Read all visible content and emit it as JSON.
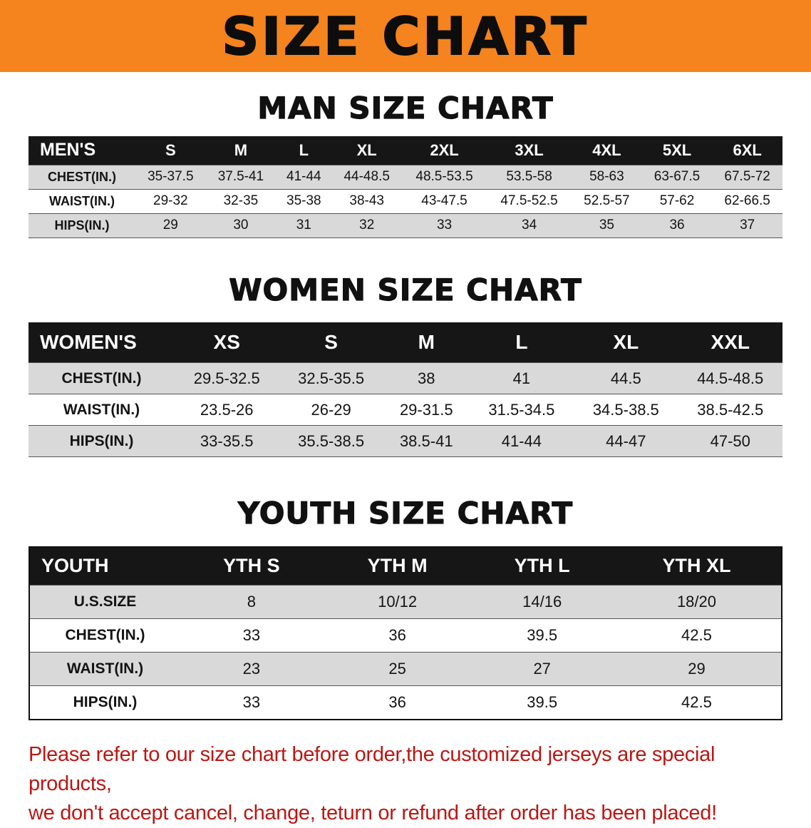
{
  "banner": {
    "title": "SIZE CHART",
    "bg_color": "#F5831E"
  },
  "sections": [
    {
      "heading": "MAN SIZE CHART",
      "table": {
        "header": [
          "MEN'S",
          "S",
          "M",
          "L",
          "XL",
          "2XL",
          "3XL",
          "4XL",
          "5XL",
          "6XL"
        ],
        "rows": [
          [
            "CHEST(IN.)",
            "35-37.5",
            "37.5-41",
            "41-44",
            "44-48.5",
            "48.5-53.5",
            "53.5-58",
            "58-63",
            "63-67.5",
            "67.5-72"
          ],
          [
            "WAIST(IN.)",
            "29-32",
            "32-35",
            "35-38",
            "38-43",
            "43-47.5",
            "47.5-52.5",
            "52.5-57",
            "57-62",
            "62-66.5"
          ],
          [
            "HIPS(IN.)",
            "29",
            "30",
            "31",
            "32",
            "33",
            "34",
            "35",
            "36",
            "37"
          ]
        ]
      }
    },
    {
      "heading": "WOMEN SIZE CHART",
      "table": {
        "header": [
          "WOMEN'S",
          "XS",
          "S",
          "M",
          "L",
          "XL",
          "XXL"
        ],
        "rows": [
          [
            "CHEST(IN.)",
            "29.5-32.5",
            "32.5-35.5",
            "38",
            "41",
            "44.5",
            "44.5-48.5"
          ],
          [
            "WAIST(IN.)",
            "23.5-26",
            "26-29",
            "29-31.5",
            "31.5-34.5",
            "34.5-38.5",
            "38.5-42.5"
          ],
          [
            "HIPS(IN.)",
            "33-35.5",
            "35.5-38.5",
            "38.5-41",
            "41-44",
            "44-47",
            "47-50"
          ]
        ]
      }
    },
    {
      "heading": "YOUTH SIZE CHART",
      "table": {
        "header": [
          "YOUTH",
          "YTH S",
          "YTH M",
          "YTH L",
          "YTH XL"
        ],
        "rows": [
          [
            "U.S.SIZE",
            "8",
            "10/12",
            "14/16",
            "18/20"
          ],
          [
            "CHEST(IN.)",
            "33",
            "36",
            "39.5",
            "42.5"
          ],
          [
            "WAIST(IN.)",
            "23",
            "25",
            "27",
            "29"
          ],
          [
            "HIPS(IN.)",
            "33",
            "36",
            "39.5",
            "42.5"
          ]
        ]
      }
    }
  ],
  "disclaimer": {
    "color": "#BB1713",
    "lines": [
      "Please refer to our size chart before order,the customized jerseys are special products,",
      "we don't accept cancel, change, teturn or refund after order has been placed!"
    ]
  },
  "colors": {
    "table_header_bg": "#161616",
    "row_alt": "#D9D9D9"
  }
}
